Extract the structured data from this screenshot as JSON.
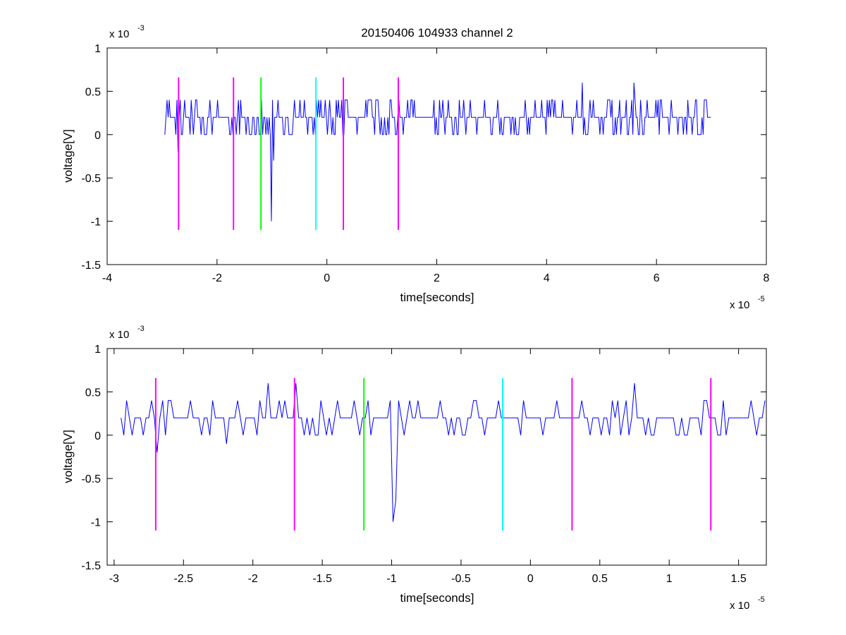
{
  "figure_title": "20150406 104933 channel 2",
  "chart_data": [
    {
      "type": "line",
      "title": "20150406 104933 channel 2",
      "xlabel": "time[seconds]",
      "ylabel": "voltage[V]",
      "x_exponent_label": "x 10",
      "x_exponent": "-5",
      "y_exponent_label": "x 10",
      "y_exponent": "-3",
      "xlim": [
        -4,
        8
      ],
      "ylim": [
        -1.5,
        1
      ],
      "xticks": [
        -4,
        -2,
        0,
        2,
        4,
        6,
        8
      ],
      "xtick_labels": [
        "-4",
        "-2",
        "0",
        "2",
        "4",
        "6",
        "8"
      ],
      "yticks": [
        -1.5,
        -1,
        -0.5,
        0,
        0.5,
        1
      ],
      "ytick_labels": [
        "-1.5",
        "-1",
        "-0.5",
        "0",
        "0.5",
        "1"
      ],
      "grid": false,
      "signal": {
        "color": "#0000ff",
        "x_start": -2.95,
        "x_end": 7.0,
        "sample_step": 0.02,
        "quantization": 0.2,
        "levels_seen": [
          -0.2,
          0,
          0.2,
          0.4,
          0.6
        ],
        "spikes": [
          {
            "x": -2.7,
            "y": -0.2
          },
          {
            "x": -1.0,
            "y": -1.0
          },
          {
            "x": -0.96,
            "y": -0.3
          },
          {
            "x": 4.65,
            "y": 0.6
          },
          {
            "x": 5.58,
            "y": 0.6
          }
        ]
      },
      "markers": [
        {
          "x": -2.7,
          "color": "#ff00ff"
        },
        {
          "x": -1.7,
          "color": "#ff00ff"
        },
        {
          "x": -1.2,
          "color": "#00ff00"
        },
        {
          "x": -0.2,
          "color": "#00ffff"
        },
        {
          "x": 0.3,
          "color": "#ff00ff"
        },
        {
          "x": 1.3,
          "color": "#ff00ff"
        }
      ],
      "marker_range": [
        -1.1,
        0.66
      ]
    },
    {
      "type": "line",
      "title": "",
      "xlabel": "time[seconds]",
      "ylabel": "voltage[V]",
      "x_exponent_label": "x 10",
      "x_exponent": "-5",
      "y_exponent_label": "x 10",
      "y_exponent": "-3",
      "xlim": [
        -3.05,
        1.7
      ],
      "ylim": [
        -1.5,
        1
      ],
      "xticks": [
        -3,
        -2.5,
        -2,
        -1.5,
        -1,
        -0.5,
        0,
        0.5,
        1,
        1.5
      ],
      "xtick_labels": [
        "-3",
        "-2.5",
        "-2",
        "-1.5",
        "-1",
        "-0.5",
        "0",
        "0.5",
        "1",
        "1.5"
      ],
      "yticks": [
        -1.5,
        -1,
        -0.5,
        0,
        0.5,
        1
      ],
      "ytick_labels": [
        "-1.5",
        "-1",
        "-0.5",
        "0",
        "0.5",
        "1"
      ],
      "grid": false,
      "signal": {
        "color": "#0000ff",
        "x_start": -2.95,
        "x_end": 1.7,
        "sample_step": 0.02,
        "quantization": 0.2,
        "levels_seen": [
          -0.2,
          0,
          0.2,
          0.4,
          0.6
        ],
        "spikes": [
          {
            "x": -2.68,
            "y": -0.2
          },
          {
            "x": -2.18,
            "y": -0.1
          },
          {
            "x": -1.88,
            "y": 0.6
          },
          {
            "x": -1.68,
            "y": 0.6
          },
          {
            "x": -0.98,
            "y": -1.0
          },
          {
            "x": -0.96,
            "y": -0.75
          },
          {
            "x": 0.75,
            "y": 0.6
          }
        ]
      },
      "markers": [
        {
          "x": -2.7,
          "color": "#ff00ff"
        },
        {
          "x": -1.7,
          "color": "#ff00ff"
        },
        {
          "x": -1.2,
          "color": "#00ff00"
        },
        {
          "x": -0.2,
          "color": "#00ffff"
        },
        {
          "x": 0.3,
          "color": "#ff00ff"
        },
        {
          "x": 1.3,
          "color": "#ff00ff"
        }
      ],
      "marker_range": [
        -1.1,
        0.66
      ]
    }
  ]
}
